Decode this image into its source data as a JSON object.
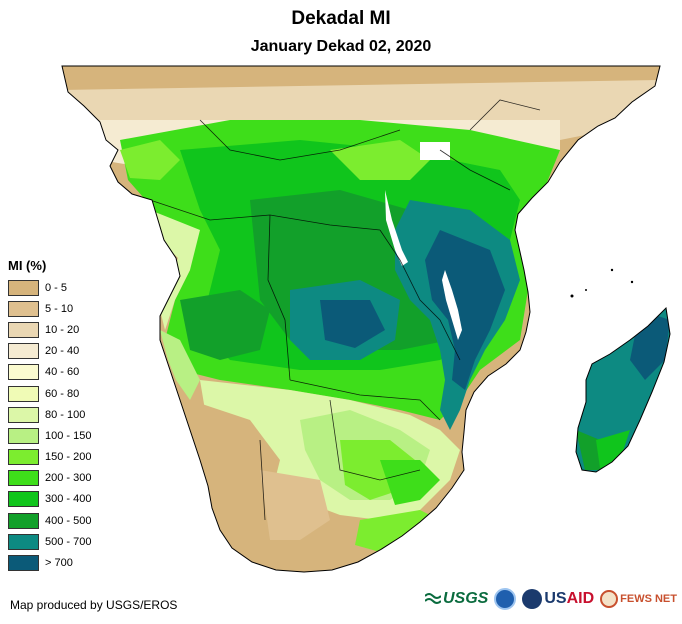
{
  "header": {
    "title": "Dekadal MI",
    "subtitle": "January Dekad 02, 2020"
  },
  "legend": {
    "title": "MI (%)",
    "items": [
      {
        "label": "0 - 5",
        "color": "#d6b47c"
      },
      {
        "label": "5 - 10",
        "color": "#dfc08f"
      },
      {
        "label": "10 - 20",
        "color": "#ead7b3"
      },
      {
        "label": "20 - 40",
        "color": "#f5ebd2"
      },
      {
        "label": "40 - 60",
        "color": "#fbfbd0"
      },
      {
        "label": "60 - 80",
        "color": "#f0fbb6"
      },
      {
        "label": "80 - 100",
        "color": "#dcf7a8"
      },
      {
        "label": "100 - 150",
        "color": "#b8f084"
      },
      {
        "label": "150 - 200",
        "color": "#7ced2f"
      },
      {
        "label": "200 - 300",
        "color": "#3ede1a"
      },
      {
        "label": "300 - 400",
        "color": "#10c51c"
      },
      {
        "label": "400 - 500",
        "color": "#12a02a"
      },
      {
        "label": "500 - 700",
        "color": "#0d8a82"
      },
      {
        "label": "> 700",
        "color": "#0b5a78"
      }
    ]
  },
  "footer": {
    "credit": "Map produced by USGS/EROS",
    "logos": {
      "usgs": "USGS",
      "usaid_us": "US",
      "usaid_aid": "AID",
      "fews": "FEWS NET"
    }
  }
}
